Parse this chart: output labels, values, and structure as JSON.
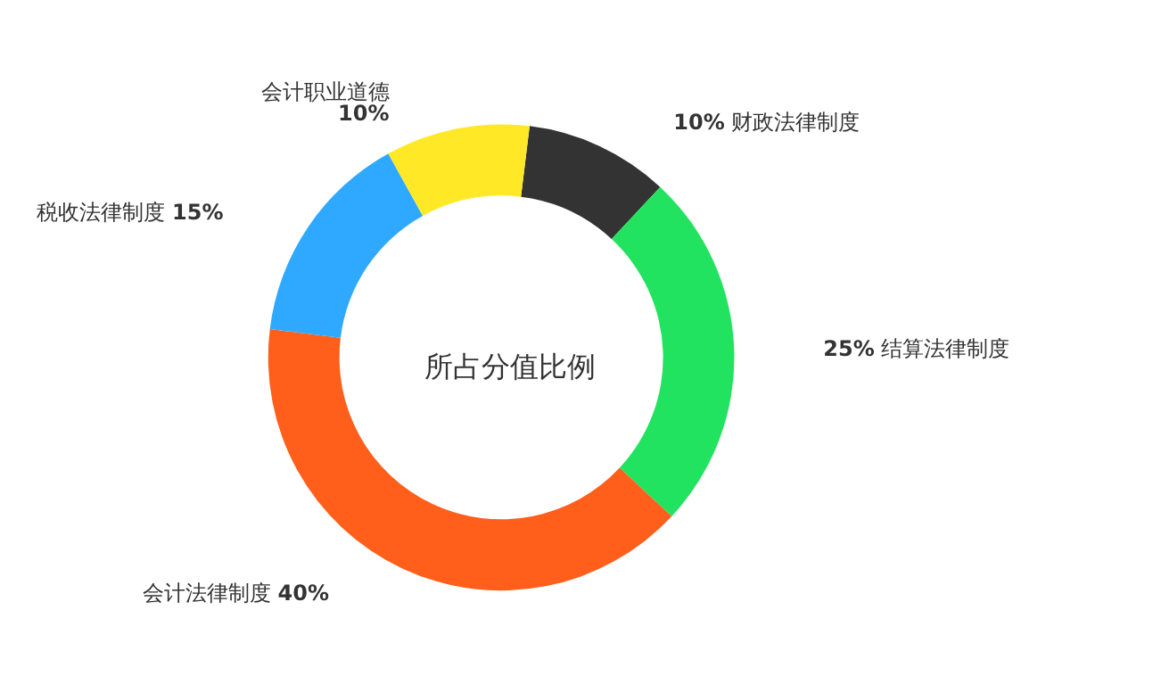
{
  "chart_data": {
    "type": "donut",
    "title": "所占分值比例",
    "categories": [
      "财政法律制度",
      "结算法律制度",
      "会计法律制度",
      "税收法律制度",
      "会计职业道德"
    ],
    "values": [
      10,
      25,
      40,
      15,
      10
    ],
    "value_labels": [
      "10%",
      "25%",
      "40%",
      "15%",
      "10%"
    ],
    "colors": [
      "#333333",
      "#22e35f",
      "#ff5f1b",
      "#2ea9ff",
      "#ffe926"
    ],
    "legend": false
  }
}
